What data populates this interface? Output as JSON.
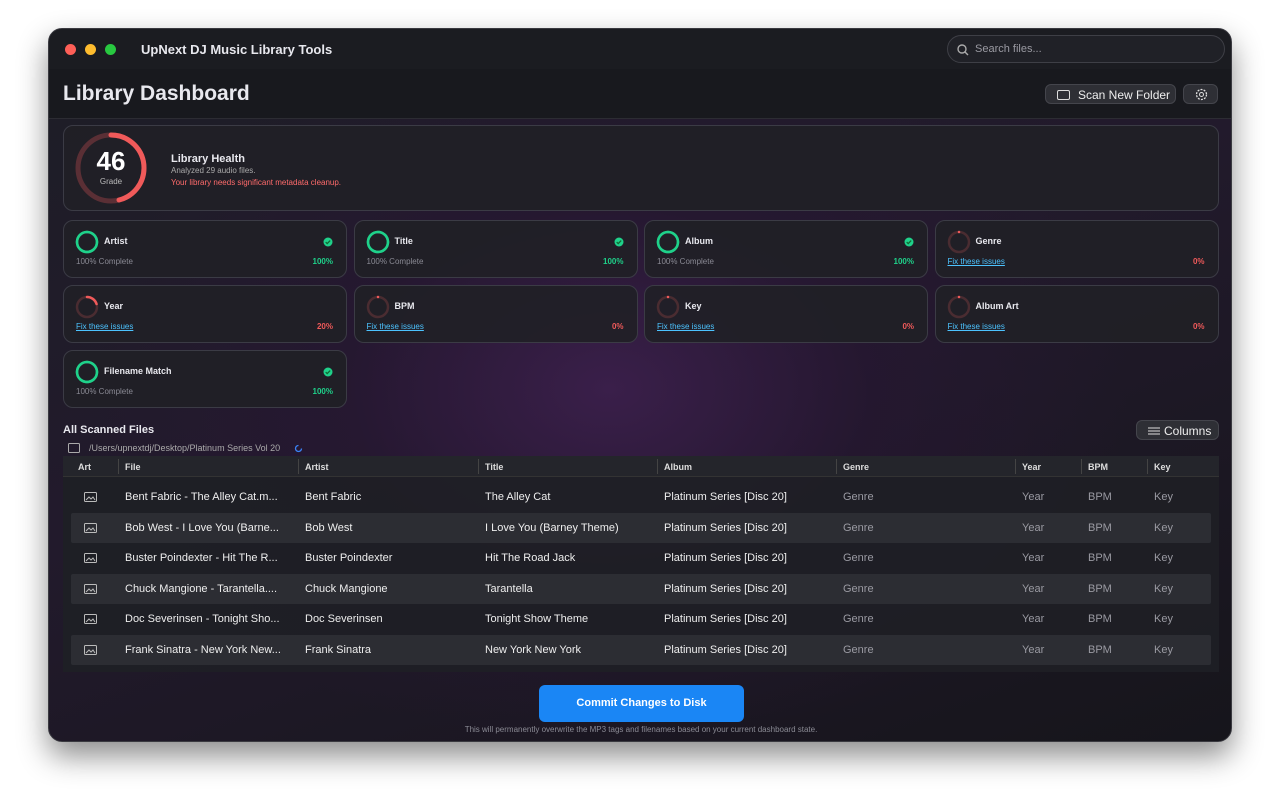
{
  "window": {
    "title": "UpNext DJ Music Library Tools",
    "search_placeholder": "Search files..."
  },
  "header": {
    "title": "Library Dashboard",
    "scan_button": "Scan New Folder"
  },
  "health": {
    "score": 46,
    "grade_label": "Grade",
    "title": "Library Health",
    "subtitle": "Analyzed 29 audio files.",
    "warning": "Your library needs significant metadata cleanup."
  },
  "metrics": [
    {
      "name": "Artist",
      "status": "100% Complete",
      "percent": {
        "value": 100,
        "label": "100%"
      }
    },
    {
      "name": "Title",
      "status": "100% Complete",
      "percent": {
        "value": 100,
        "label": "100%"
      }
    },
    {
      "name": "Album",
      "status": "100% Complete",
      "percent": {
        "value": 100,
        "label": "100%"
      }
    },
    {
      "name": "Genre",
      "status": "Fix these issues",
      "percent": {
        "value": 0,
        "label": "0%"
      }
    },
    {
      "name": "Year",
      "status": "Fix these issues",
      "percent": {
        "value": 20,
        "label": "20%"
      }
    },
    {
      "name": "BPM",
      "status": "Fix these issues",
      "percent": {
        "value": 0,
        "label": "0%"
      }
    },
    {
      "name": "Key",
      "status": "Fix these issues",
      "percent": {
        "value": 0,
        "label": "0%"
      }
    },
    {
      "name": "Album Art",
      "status": "Fix these issues",
      "percent": {
        "value": 0,
        "label": "0%"
      }
    },
    {
      "name": "Filename Match",
      "status": "100% Complete",
      "percent": {
        "value": 100,
        "label": "100%"
      }
    }
  ],
  "files": {
    "title": "All Scanned Files",
    "path": "/Users/upnextdj/Desktop/Platinum Series Vol 20",
    "columns_button": "Columns",
    "headers": [
      "Art",
      "File",
      "Artist",
      "Title",
      "Album",
      "Genre",
      "Year",
      "BPM",
      "Key"
    ],
    "rows": [
      [
        "Bent Fabric - The Alley Cat.m...",
        "Bent Fabric",
        "The Alley Cat",
        "Platinum Series [Disc 20]",
        "Genre",
        "Year",
        "BPM",
        "Key"
      ],
      [
        "Bob West - I Love You (Barne...",
        "Bob West",
        "I Love You (Barney Theme)",
        "Platinum Series [Disc 20]",
        "Genre",
        "Year",
        "BPM",
        "Key"
      ],
      [
        "Buster Poindexter - Hit The R...",
        "Buster Poindexter",
        "Hit The Road Jack",
        "Platinum Series [Disc 20]",
        "Genre",
        "Year",
        "BPM",
        "Key"
      ],
      [
        "Chuck Mangione - Tarantella....",
        "Chuck Mangione",
        "Tarantella",
        "Platinum Series [Disc 20]",
        "Genre",
        "Year",
        "BPM",
        "Key"
      ],
      [
        "Doc Severinsen - Tonight Sho...",
        "Doc Severinsen",
        "Tonight Show Theme",
        "Platinum Series [Disc 20]",
        "Genre",
        "Year",
        "BPM",
        "Key"
      ],
      [
        "Frank Sinatra - New York New...",
        "Frank Sinatra",
        "New York New York",
        "Platinum Series [Disc 20]",
        "Genre",
        "Year",
        "BPM",
        "Key"
      ]
    ]
  },
  "commit": {
    "button": "Commit Changes to Disk",
    "note": "This will permanently overwrite the MP3 tags and filenames based on your current dashboard state."
  }
}
